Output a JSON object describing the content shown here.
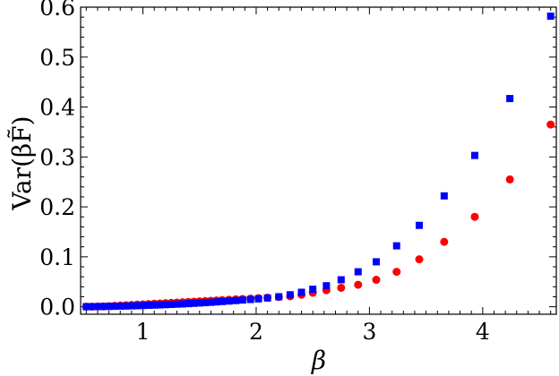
{
  "chart_data": {
    "type": "scatter",
    "title": "",
    "xlabel": "β",
    "ylabel": "Var(βF̃)",
    "xlim": [
      0.45,
      4.65
    ],
    "ylim": [
      -0.015,
      0.6
    ],
    "xticks": [
      1,
      2,
      3,
      4
    ],
    "xtick_labels": [
      "1",
      "2",
      "3",
      "4"
    ],
    "yticks": [
      0.0,
      0.1,
      0.2,
      0.3,
      0.4,
      0.5,
      0.6
    ],
    "ytick_labels": [
      "0.0",
      "0.1",
      "0.2",
      "0.3",
      "0.4",
      "0.5",
      "0.6"
    ],
    "grid": false,
    "legend": "none",
    "series": [
      {
        "marker": "circle",
        "color": "#ff0000",
        "points": [
          [
            0.5,
            0.0002
          ],
          [
            0.55,
            0.0003
          ],
          [
            0.6,
            0.0005
          ],
          [
            0.65,
            0.0008
          ],
          [
            0.7,
            0.0012
          ],
          [
            0.75,
            0.0018
          ],
          [
            0.8,
            0.0024
          ],
          [
            0.85,
            0.003
          ],
          [
            0.9,
            0.0036
          ],
          [
            0.95,
            0.0042
          ],
          [
            1.0,
            0.0048
          ],
          [
            1.05,
            0.0054
          ],
          [
            1.1,
            0.006
          ],
          [
            1.15,
            0.0066
          ],
          [
            1.2,
            0.0072
          ],
          [
            1.25,
            0.0078
          ],
          [
            1.3,
            0.0084
          ],
          [
            1.35,
            0.009
          ],
          [
            1.4,
            0.0096
          ],
          [
            1.45,
            0.0102
          ],
          [
            1.5,
            0.0108
          ],
          [
            1.55,
            0.0114
          ],
          [
            1.6,
            0.012
          ],
          [
            1.65,
            0.0126
          ],
          [
            1.7,
            0.0133
          ],
          [
            1.76,
            0.014
          ],
          [
            1.82,
            0.0147
          ],
          [
            1.88,
            0.0155
          ],
          [
            1.95,
            0.0163
          ],
          [
            2.02,
            0.0172
          ],
          [
            2.1,
            0.0182
          ],
          [
            2.2,
            0.0195
          ],
          [
            2.3,
            0.021
          ],
          [
            2.4,
            0.024
          ],
          [
            2.5,
            0.028
          ],
          [
            2.62,
            0.033
          ],
          [
            2.75,
            0.038
          ],
          [
            2.9,
            0.044
          ],
          [
            3.06,
            0.054
          ],
          [
            3.24,
            0.07
          ],
          [
            3.44,
            0.095
          ],
          [
            3.66,
            0.13
          ],
          [
            3.93,
            0.18
          ],
          [
            4.24,
            0.255
          ],
          [
            4.6,
            0.365
          ]
        ]
      },
      {
        "marker": "square",
        "color": "#0000ff",
        "points": [
          [
            0.5,
            0.0001
          ],
          [
            0.55,
            0.0002
          ],
          [
            0.6,
            0.0003
          ],
          [
            0.65,
            0.0005
          ],
          [
            0.7,
            0.0007
          ],
          [
            0.75,
            0.0009
          ],
          [
            0.8,
            0.0012
          ],
          [
            0.85,
            0.0015
          ],
          [
            0.9,
            0.0018
          ],
          [
            0.95,
            0.0021
          ],
          [
            1.0,
            0.0025
          ],
          [
            1.05,
            0.0029
          ],
          [
            1.1,
            0.0033
          ],
          [
            1.15,
            0.0037
          ],
          [
            1.2,
            0.0042
          ],
          [
            1.25,
            0.0047
          ],
          [
            1.3,
            0.0052
          ],
          [
            1.35,
            0.0057
          ],
          [
            1.4,
            0.0063
          ],
          [
            1.45,
            0.0069
          ],
          [
            1.5,
            0.0075
          ],
          [
            1.55,
            0.0082
          ],
          [
            1.6,
            0.0089
          ],
          [
            1.65,
            0.0097
          ],
          [
            1.7,
            0.0105
          ],
          [
            1.76,
            0.0114
          ],
          [
            1.82,
            0.0124
          ],
          [
            1.88,
            0.0134
          ],
          [
            1.95,
            0.0145
          ],
          [
            2.02,
            0.0158
          ],
          [
            2.1,
            0.0175
          ],
          [
            2.2,
            0.02
          ],
          [
            2.3,
            0.024
          ],
          [
            2.4,
            0.029
          ],
          [
            2.5,
            0.035
          ],
          [
            2.62,
            0.042
          ],
          [
            2.75,
            0.054
          ],
          [
            2.9,
            0.07
          ],
          [
            3.06,
            0.09
          ],
          [
            3.24,
            0.122
          ],
          [
            3.44,
            0.163
          ],
          [
            3.66,
            0.222
          ],
          [
            3.93,
            0.303
          ],
          [
            4.24,
            0.417
          ],
          [
            4.6,
            0.582
          ]
        ]
      }
    ]
  }
}
